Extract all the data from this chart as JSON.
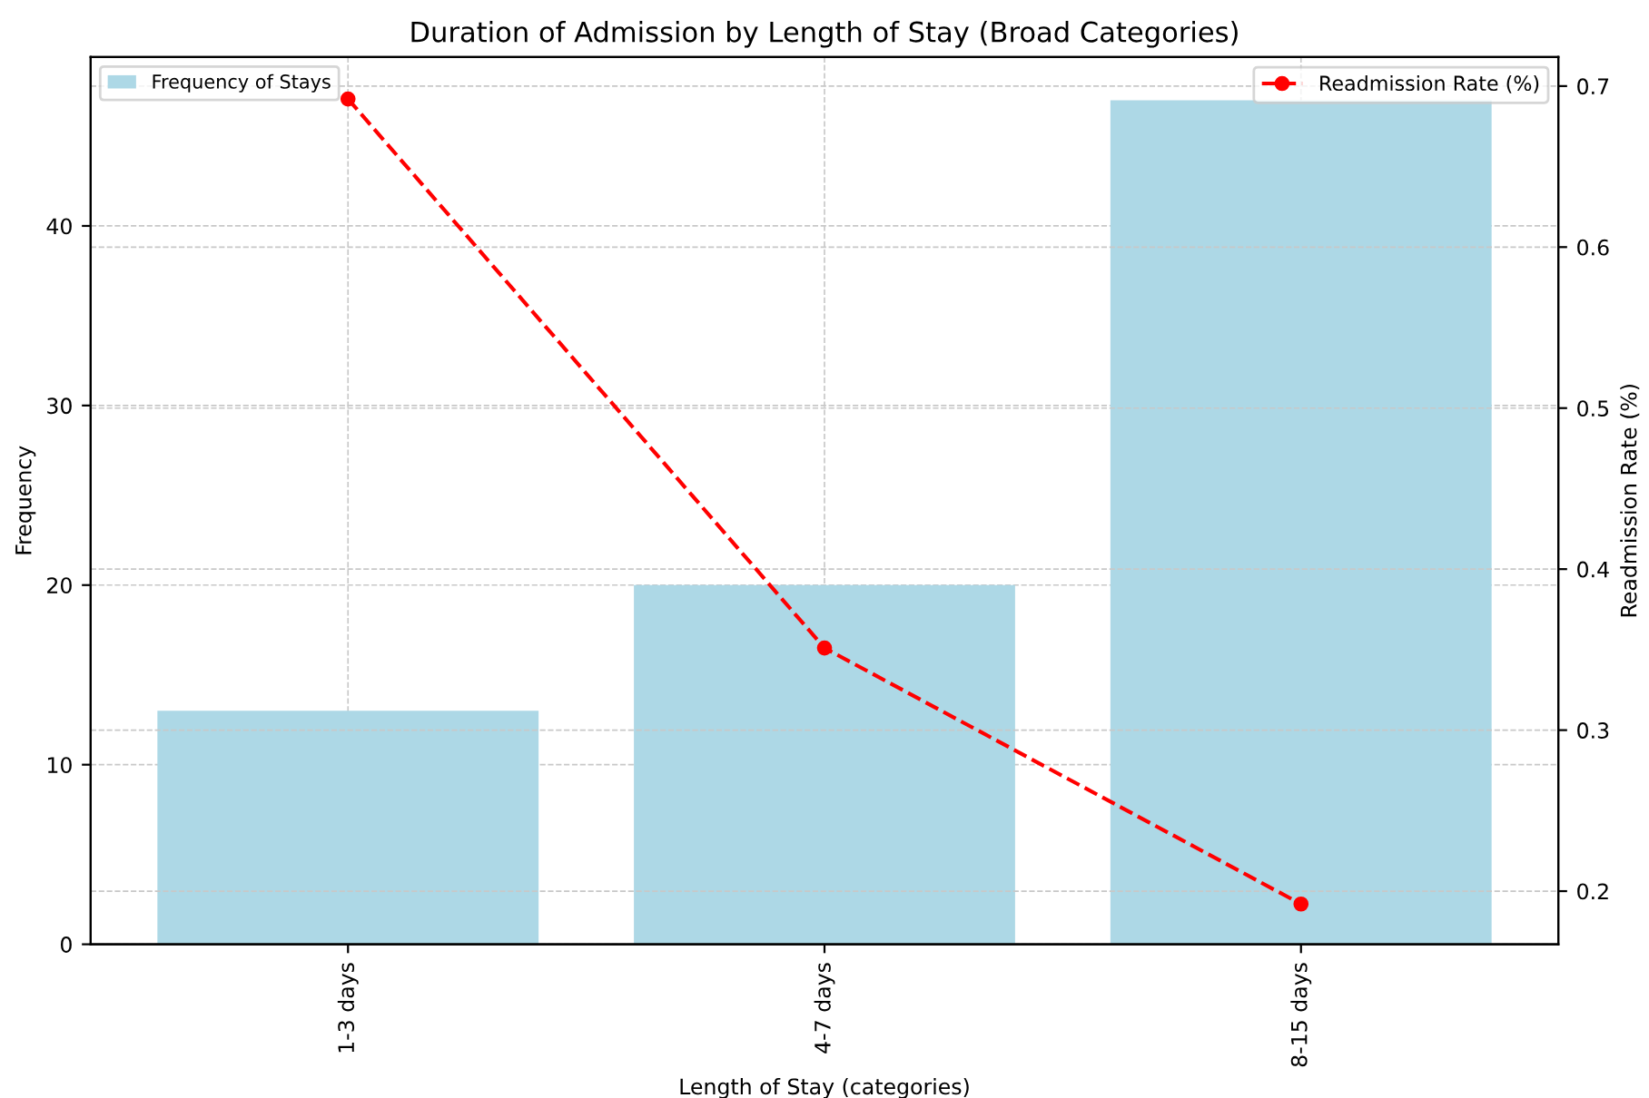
{
  "chart_data": {
    "type": "bar",
    "title": "Duration of Admission by Length of Stay (Broad Categories)",
    "xlabel": "Length of Stay (categories)",
    "ylabel": "Frequency",
    "y2label": "Readmission Rate (%)",
    "categories": [
      "1-3 days",
      "4-7 days",
      "8-15 days"
    ],
    "series": [
      {
        "name": "Frequency of Stays",
        "color": "#add8e6",
        "values": [
          13,
          20,
          47
        ]
      },
      {
        "name": "Readmission Rate (%)",
        "type": "line",
        "axis": "y2",
        "color": "#ff0000",
        "values": [
          0.692,
          0.351,
          0.192
        ],
        "marker": "circle",
        "line_style": "dashed"
      }
    ],
    "ylim": [
      0,
      49.4
    ],
    "yticks": [
      0,
      10,
      20,
      30,
      40
    ],
    "y2lim": [
      0.167,
      0.718
    ],
    "y2ticks": [
      0.2,
      0.3,
      0.4,
      0.5,
      0.6,
      0.7
    ],
    "grid": true,
    "legend": "top left"
  }
}
